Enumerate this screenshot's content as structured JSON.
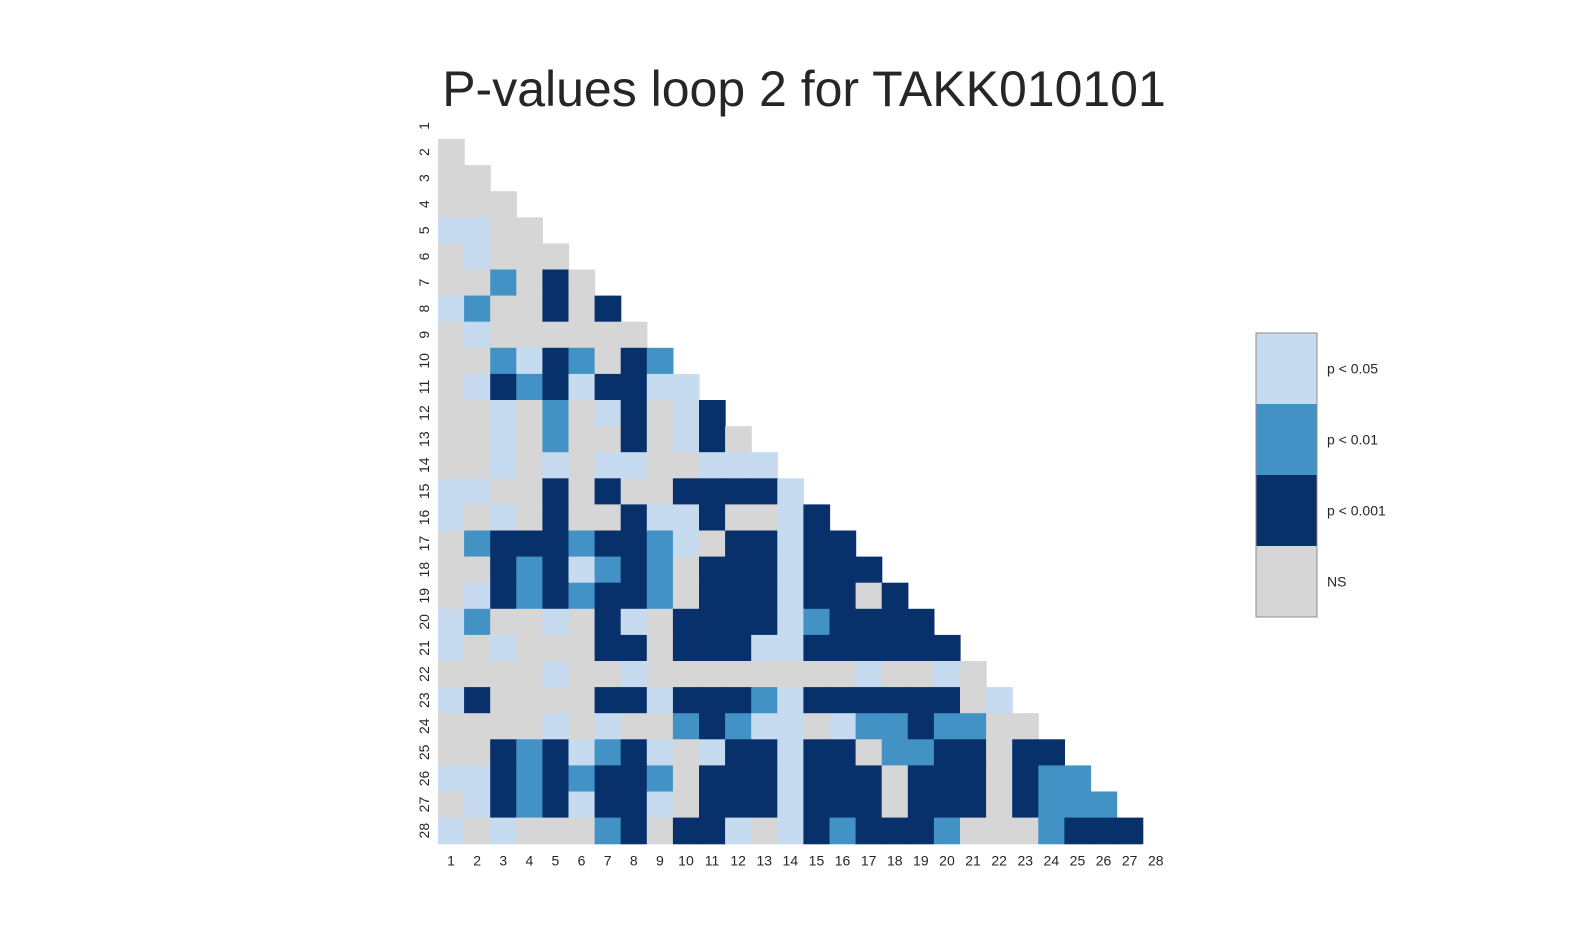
{
  "chart_data": {
    "type": "heatmap",
    "title": "P-values loop 2 for TAKK010101",
    "mask": "lower-triangle",
    "labels": [
      "1",
      "2",
      "3",
      "4",
      "5",
      "6",
      "7",
      "8",
      "9",
      "10",
      "11",
      "12",
      "13",
      "14",
      "15",
      "16",
      "17",
      "18",
      "19",
      "20",
      "21",
      "22",
      "23",
      "24",
      "25",
      "26",
      "27",
      "28"
    ],
    "levels": [
      {
        "code": 0,
        "label": "NS",
        "color": "#d6d6d6"
      },
      {
        "code": 1,
        "label": "p < 0.05",
        "color": "#c6dbef"
      },
      {
        "code": 2,
        "label": "p < 0.01",
        "color": "#4292c6"
      },
      {
        "code": 3,
        "label": "p < 0.001",
        "color": "#08306b"
      }
    ],
    "legend_order": [
      1,
      2,
      3,
      0
    ],
    "legend_position": "right",
    "matrix": [
      [],
      [
        0
      ],
      [
        0,
        0
      ],
      [
        0,
        0,
        0
      ],
      [
        1,
        1,
        0,
        0
      ],
      [
        0,
        1,
        0,
        0,
        0
      ],
      [
        0,
        0,
        2,
        0,
        3,
        0
      ],
      [
        1,
        2,
        0,
        0,
        3,
        0,
        3
      ],
      [
        0,
        1,
        0,
        0,
        0,
        0,
        0,
        0
      ],
      [
        0,
        0,
        2,
        1,
        3,
        2,
        0,
        3,
        2
      ],
      [
        0,
        1,
        3,
        2,
        3,
        1,
        3,
        3,
        1,
        1
      ],
      [
        0,
        0,
        1,
        0,
        2,
        0,
        1,
        3,
        0,
        1,
        3
      ],
      [
        0,
        0,
        1,
        0,
        2,
        0,
        0,
        3,
        0,
        1,
        3,
        0
      ],
      [
        0,
        0,
        1,
        0,
        1,
        0,
        1,
        1,
        0,
        0,
        1,
        1,
        1
      ],
      [
        1,
        1,
        0,
        0,
        3,
        0,
        3,
        0,
        0,
        3,
        3,
        3,
        3,
        1
      ],
      [
        1,
        0,
        1,
        0,
        3,
        0,
        0,
        3,
        1,
        1,
        3,
        0,
        0,
        1,
        3
      ],
      [
        0,
        2,
        3,
        3,
        3,
        2,
        3,
        3,
        2,
        1,
        0,
        3,
        3,
        1,
        3,
        3
      ],
      [
        0,
        0,
        3,
        2,
        3,
        1,
        2,
        3,
        2,
        0,
        3,
        3,
        3,
        1,
        3,
        3,
        3
      ],
      [
        0,
        1,
        3,
        2,
        3,
        2,
        3,
        3,
        2,
        0,
        3,
        3,
        3,
        1,
        3,
        3,
        0,
        3
      ],
      [
        1,
        2,
        0,
        0,
        1,
        0,
        3,
        1,
        0,
        3,
        3,
        3,
        3,
        1,
        2,
        3,
        3,
        3,
        3
      ],
      [
        1,
        0,
        1,
        0,
        0,
        0,
        3,
        3,
        0,
        3,
        3,
        3,
        1,
        1,
        3,
        3,
        3,
        3,
        3,
        3
      ],
      [
        0,
        0,
        0,
        0,
        1,
        0,
        0,
        1,
        0,
        0,
        0,
        0,
        0,
        0,
        0,
        0,
        1,
        0,
        0,
        1,
        0
      ],
      [
        1,
        3,
        0,
        0,
        0,
        0,
        3,
        3,
        1,
        3,
        3,
        3,
        2,
        1,
        3,
        3,
        3,
        3,
        3,
        3,
        0,
        1
      ],
      [
        0,
        0,
        0,
        0,
        1,
        0,
        1,
        0,
        0,
        2,
        3,
        2,
        1,
        1,
        0,
        1,
        2,
        2,
        3,
        2,
        2,
        0,
        0
      ],
      [
        0,
        0,
        3,
        2,
        3,
        1,
        2,
        3,
        1,
        0,
        1,
        3,
        3,
        1,
        3,
        3,
        0,
        2,
        2,
        3,
        3,
        0,
        3,
        3
      ],
      [
        1,
        1,
        3,
        2,
        3,
        2,
        3,
        3,
        2,
        0,
        3,
        3,
        3,
        1,
        3,
        3,
        3,
        0,
        3,
        3,
        3,
        0,
        3,
        2,
        2
      ],
      [
        0,
        1,
        3,
        2,
        3,
        1,
        3,
        3,
        1,
        0,
        3,
        3,
        3,
        1,
        3,
        3,
        3,
        0,
        3,
        3,
        3,
        0,
        3,
        2,
        2,
        2
      ],
      [
        1,
        0,
        1,
        0,
        0,
        0,
        2,
        3,
        0,
        3,
        3,
        1,
        0,
        1,
        3,
        2,
        3,
        3,
        3,
        2,
        0,
        0,
        0,
        2,
        3,
        3,
        3
      ]
    ]
  }
}
